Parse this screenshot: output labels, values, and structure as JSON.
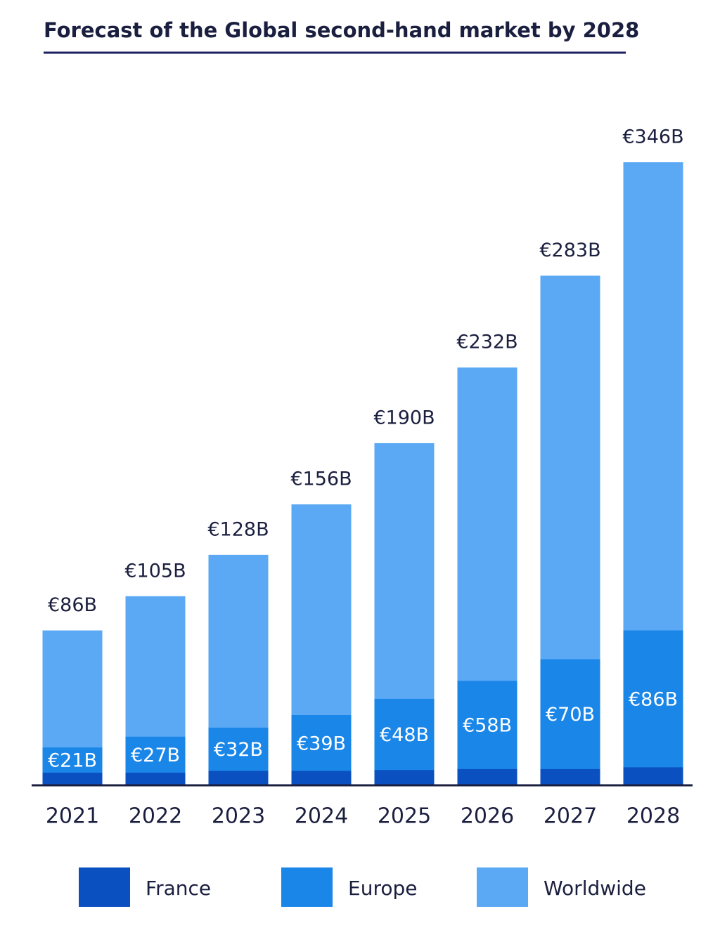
{
  "chart_data": {
    "type": "bar",
    "title": "Forecast of the Global second-hand market by 2028",
    "categories": [
      "2021",
      "2022",
      "2023",
      "2024",
      "2025",
      "2026",
      "2027",
      "2028"
    ],
    "series": [
      {
        "name": "Worldwide",
        "color": "#5ba8f5",
        "values": [
          86,
          105,
          128,
          156,
          190,
          232,
          283,
          346
        ],
        "value_labels": [
          "€86B",
          "€105B",
          "€128B",
          "€156B",
          "€190B",
          "€232B",
          "€283B",
          "€346B"
        ]
      },
      {
        "name": "Europe",
        "color": "#1a86e8",
        "values": [
          21,
          27,
          32,
          39,
          48,
          58,
          70,
          86
        ],
        "value_labels": [
          "€21B",
          "€27B",
          "€32B",
          "€39B",
          "€48B",
          "€58B",
          "€70B",
          "€86B"
        ]
      },
      {
        "name": "France",
        "color": "#0b50c0",
        "values": [
          7,
          7,
          8,
          8,
          8.5,
          9,
          9,
          10
        ]
      }
    ],
    "legend_order": [
      "France",
      "Europe",
      "Worldwide"
    ]
  }
}
